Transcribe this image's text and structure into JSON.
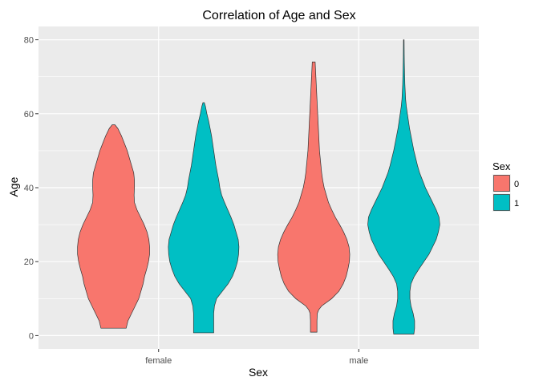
{
  "chart_data": {
    "type": "violin",
    "title": "Correlation of Age and Sex",
    "xlabel": "Sex",
    "ylabel": "Age",
    "categories": [
      "female",
      "male"
    ],
    "ylim": [
      -3.6,
      83.6
    ],
    "yticks": [
      0,
      20,
      40,
      60,
      80
    ],
    "grid": true,
    "legend": {
      "title": "Sex",
      "placement": "right",
      "entries": [
        {
          "label": "0",
          "color": "#F8766D"
        },
        {
          "label": "1",
          "color": "#00BFC4"
        }
      ]
    },
    "violins": [
      {
        "category": "female",
        "group": "0",
        "color": "#F8766D",
        "profile": [
          [
            2,
            0.35
          ],
          [
            4,
            0.4
          ],
          [
            6,
            0.5
          ],
          [
            8,
            0.6
          ],
          [
            10,
            0.7
          ],
          [
            12,
            0.76
          ],
          [
            14,
            0.82
          ],
          [
            16,
            0.86
          ],
          [
            18,
            0.92
          ],
          [
            20,
            0.97
          ],
          [
            22,
            1.0
          ],
          [
            24,
            1.0
          ],
          [
            26,
            0.98
          ],
          [
            28,
            0.93
          ],
          [
            30,
            0.85
          ],
          [
            32,
            0.75
          ],
          [
            34,
            0.65
          ],
          [
            36,
            0.58
          ],
          [
            38,
            0.57
          ],
          [
            40,
            0.58
          ],
          [
            42,
            0.58
          ],
          [
            44,
            0.56
          ],
          [
            46,
            0.5
          ],
          [
            48,
            0.44
          ],
          [
            50,
            0.38
          ],
          [
            52,
            0.3
          ],
          [
            54,
            0.22
          ],
          [
            56,
            0.12
          ],
          [
            57,
            0.04
          ]
        ]
      },
      {
        "category": "female",
        "group": "1",
        "color": "#00BFC4",
        "profile": [
          [
            0.75,
            0.28
          ],
          [
            2,
            0.28
          ],
          [
            4,
            0.28
          ],
          [
            6,
            0.28
          ],
          [
            8,
            0.3
          ],
          [
            10,
            0.36
          ],
          [
            12,
            0.52
          ],
          [
            14,
            0.68
          ],
          [
            16,
            0.8
          ],
          [
            18,
            0.88
          ],
          [
            20,
            0.94
          ],
          [
            22,
            0.97
          ],
          [
            24,
            0.98
          ],
          [
            26,
            0.96
          ],
          [
            28,
            0.9
          ],
          [
            30,
            0.84
          ],
          [
            32,
            0.76
          ],
          [
            34,
            0.67
          ],
          [
            36,
            0.58
          ],
          [
            38,
            0.5
          ],
          [
            40,
            0.45
          ],
          [
            42,
            0.42
          ],
          [
            44,
            0.38
          ],
          [
            46,
            0.34
          ],
          [
            48,
            0.31
          ],
          [
            50,
            0.28
          ],
          [
            52,
            0.25
          ],
          [
            54,
            0.22
          ],
          [
            56,
            0.18
          ],
          [
            58,
            0.14
          ],
          [
            60,
            0.09
          ],
          [
            62,
            0.05
          ],
          [
            63,
            0.02
          ]
        ]
      },
      {
        "category": "male",
        "group": "0",
        "color": "#F8766D",
        "profile": [
          [
            0.92,
            0.09
          ],
          [
            2,
            0.09
          ],
          [
            4,
            0.09
          ],
          [
            6,
            0.1
          ],
          [
            7,
            0.14
          ],
          [
            8,
            0.22
          ],
          [
            10,
            0.5
          ],
          [
            12,
            0.7
          ],
          [
            14,
            0.82
          ],
          [
            16,
            0.9
          ],
          [
            18,
            0.95
          ],
          [
            20,
            0.99
          ],
          [
            22,
            1.0
          ],
          [
            24,
            0.98
          ],
          [
            26,
            0.92
          ],
          [
            28,
            0.83
          ],
          [
            30,
            0.72
          ],
          [
            32,
            0.6
          ],
          [
            34,
            0.5
          ],
          [
            36,
            0.41
          ],
          [
            38,
            0.35
          ],
          [
            40,
            0.29
          ],
          [
            42,
            0.25
          ],
          [
            44,
            0.22
          ],
          [
            46,
            0.2
          ],
          [
            48,
            0.18
          ],
          [
            50,
            0.16
          ],
          [
            52,
            0.15
          ],
          [
            54,
            0.14
          ],
          [
            56,
            0.13
          ],
          [
            58,
            0.12
          ],
          [
            60,
            0.11
          ],
          [
            62,
            0.1
          ],
          [
            64,
            0.09
          ],
          [
            66,
            0.08
          ],
          [
            68,
            0.07
          ],
          [
            70,
            0.06
          ],
          [
            72,
            0.05
          ],
          [
            74,
            0.04
          ]
        ]
      },
      {
        "category": "male",
        "group": "1",
        "color": "#00BFC4",
        "profile": [
          [
            0.42,
            0.28
          ],
          [
            2,
            0.3
          ],
          [
            4,
            0.3
          ],
          [
            6,
            0.26
          ],
          [
            8,
            0.2
          ],
          [
            10,
            0.17
          ],
          [
            12,
            0.17
          ],
          [
            14,
            0.2
          ],
          [
            16,
            0.29
          ],
          [
            18,
            0.42
          ],
          [
            20,
            0.56
          ],
          [
            22,
            0.7
          ],
          [
            24,
            0.8
          ],
          [
            26,
            0.9
          ],
          [
            28,
            0.96
          ],
          [
            30,
            1.0
          ],
          [
            32,
            0.98
          ],
          [
            34,
            0.9
          ],
          [
            36,
            0.8
          ],
          [
            38,
            0.7
          ],
          [
            40,
            0.6
          ],
          [
            42,
            0.52
          ],
          [
            44,
            0.44
          ],
          [
            46,
            0.38
          ],
          [
            48,
            0.33
          ],
          [
            50,
            0.28
          ],
          [
            52,
            0.24
          ],
          [
            54,
            0.2
          ],
          [
            56,
            0.16
          ],
          [
            58,
            0.13
          ],
          [
            60,
            0.1
          ],
          [
            62,
            0.07
          ],
          [
            64,
            0.05
          ],
          [
            66,
            0.04
          ],
          [
            68,
            0.03
          ],
          [
            70,
            0.025
          ],
          [
            72,
            0.02
          ],
          [
            74,
            0.015
          ],
          [
            76,
            0.012
          ],
          [
            78,
            0.01
          ],
          [
            80,
            0.008
          ]
        ]
      }
    ]
  }
}
